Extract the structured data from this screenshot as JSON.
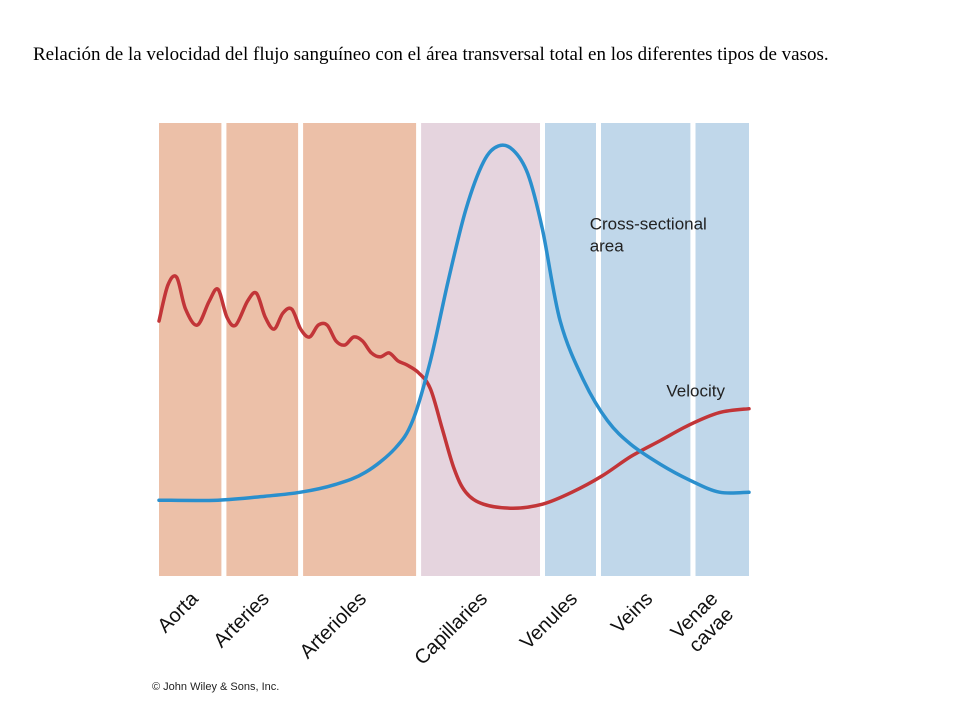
{
  "caption": "Relación de la velocidad del flujo sanguíneo con el área transversal total en los diferentes tipos de vasos.",
  "copyright": "© John Wiley & Sons, Inc.",
  "chart_data": {
    "type": "line",
    "title": "",
    "xlabel": "",
    "ylabel": "",
    "grid": false,
    "legend": "inline labels",
    "categories": [
      "Aorta",
      "Arteries",
      "Arterioles",
      "Capillaries",
      "Venules",
      "Veins",
      "Venae cavae"
    ],
    "category_bands": [
      {
        "label": "Aorta",
        "group": "arterial",
        "start": 0.0,
        "end": 0.11
      },
      {
        "label": "Arteries",
        "group": "arterial",
        "start": 0.11,
        "end": 0.24
      },
      {
        "label": "Arterioles",
        "group": "arterial",
        "start": 0.24,
        "end": 0.44
      },
      {
        "label": "Capillaries",
        "group": "capillary",
        "start": 0.44,
        "end": 0.65
      },
      {
        "label": "Venules",
        "group": "venous",
        "start": 0.65,
        "end": 0.745
      },
      {
        "label": "Veins",
        "group": "venous",
        "start": 0.745,
        "end": 0.905
      },
      {
        "label": "Venae cavae",
        "group": "venous",
        "start": 0.905,
        "end": 1.0
      }
    ],
    "group_colors": {
      "arterial": "#ecc0a8",
      "capillary": "#e5d4de",
      "venous": "#c0d7ea"
    },
    "xlim": [
      0,
      1
    ],
    "ylim": [
      0,
      1
    ],
    "series": [
      {
        "name": "Cross-sectional area",
        "color": "#2a8fcd",
        "x": [
          0.0,
          0.1,
          0.18,
          0.24,
          0.3,
          0.35,
          0.4,
          0.43,
          0.46,
          0.49,
          0.52,
          0.55,
          0.575,
          0.6,
          0.625,
          0.65,
          0.68,
          0.72,
          0.76,
          0.8,
          0.85,
          0.9,
          0.95,
          1.0
        ],
        "y": [
          0.1,
          0.1,
          0.11,
          0.12,
          0.14,
          0.17,
          0.23,
          0.3,
          0.45,
          0.65,
          0.83,
          0.95,
          0.99,
          0.98,
          0.92,
          0.78,
          0.55,
          0.4,
          0.3,
          0.24,
          0.19,
          0.15,
          0.12,
          0.12
        ]
      },
      {
        "name": "Velocity",
        "color": "#c23538",
        "x": [
          0.0,
          0.015,
          0.03,
          0.045,
          0.065,
          0.085,
          0.1,
          0.115,
          0.13,
          0.15,
          0.165,
          0.18,
          0.195,
          0.21,
          0.225,
          0.24,
          0.255,
          0.27,
          0.285,
          0.3,
          0.315,
          0.33,
          0.345,
          0.36,
          0.375,
          0.39,
          0.405,
          0.42,
          0.44,
          0.46,
          0.48,
          0.5,
          0.52,
          0.55,
          0.6,
          0.65,
          0.7,
          0.75,
          0.8,
          0.85,
          0.9,
          0.95,
          1.0
        ],
        "y": [
          0.55,
          0.64,
          0.66,
          0.58,
          0.54,
          0.6,
          0.63,
          0.56,
          0.54,
          0.6,
          0.62,
          0.56,
          0.53,
          0.57,
          0.58,
          0.53,
          0.51,
          0.54,
          0.54,
          0.5,
          0.49,
          0.51,
          0.5,
          0.47,
          0.46,
          0.47,
          0.45,
          0.44,
          0.42,
          0.38,
          0.28,
          0.18,
          0.12,
          0.09,
          0.08,
          0.09,
          0.12,
          0.16,
          0.21,
          0.25,
          0.29,
          0.32,
          0.33
        ]
      }
    ],
    "annotations": [
      {
        "series": "Cross-sectional area",
        "text_lines": [
          "Cross-sectional",
          "area"
        ],
        "at_x": 0.73,
        "at_y": 0.78
      },
      {
        "series": "Velocity",
        "text_lines": [
          "Velocity"
        ],
        "at_x": 0.86,
        "at_y": 0.36
      }
    ]
  }
}
